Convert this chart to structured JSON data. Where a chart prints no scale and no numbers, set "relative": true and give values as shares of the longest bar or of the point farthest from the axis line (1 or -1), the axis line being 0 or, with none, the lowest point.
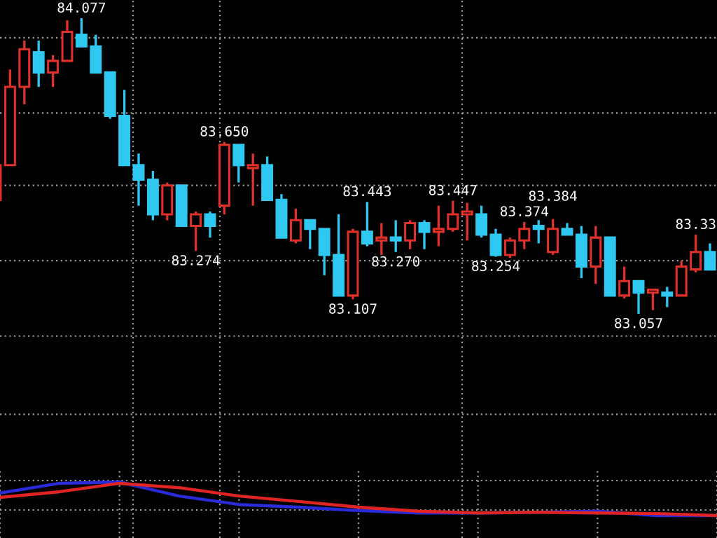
{
  "chart_data": [
    {
      "type": "candlestick",
      "categories": [
        null,
        null,
        null,
        null,
        null,
        null,
        null,
        null,
        null,
        null,
        null,
        null,
        null,
        null,
        null,
        null,
        null,
        null,
        null,
        null,
        null,
        null,
        null,
        null,
        null,
        null,
        null,
        null,
        null,
        null,
        null,
        null,
        null,
        null,
        null,
        null,
        null,
        null,
        null,
        null,
        null,
        null,
        null,
        null,
        null,
        null,
        null,
        null,
        null,
        null,
        null
      ],
      "ohlc": [
        [
          83.45,
          83.57,
          83.45,
          83.57
        ],
        [
          83.57,
          83.9,
          83.57,
          83.84
        ],
        [
          83.84,
          84.0,
          83.78,
          83.97
        ],
        [
          83.96,
          84.0,
          83.84,
          83.89
        ],
        [
          83.89,
          83.95,
          83.84,
          83.93
        ],
        [
          83.93,
          84.07,
          83.93,
          84.03
        ],
        [
          84.02,
          84.077,
          83.98,
          83.98
        ],
        [
          83.98,
          84.02,
          83.89,
          83.89
        ],
        [
          83.89,
          83.89,
          83.73,
          83.74
        ],
        [
          83.74,
          83.83,
          83.57,
          83.57
        ],
        [
          83.57,
          83.61,
          83.43,
          83.52
        ],
        [
          83.52,
          83.55,
          83.38,
          83.4
        ],
        [
          83.4,
          83.51,
          83.38,
          83.5
        ],
        [
          83.5,
          83.5,
          83.36,
          83.36
        ],
        [
          83.36,
          83.41,
          83.274,
          83.4
        ],
        [
          83.4,
          83.41,
          83.32,
          83.36
        ],
        [
          83.43,
          83.65,
          83.4,
          83.64
        ],
        [
          83.64,
          83.64,
          83.51,
          83.57
        ],
        [
          83.56,
          83.61,
          83.43,
          83.57
        ],
        [
          83.57,
          83.6,
          83.45,
          83.45
        ],
        [
          83.45,
          83.47,
          83.32,
          83.32
        ],
        [
          83.31,
          83.42,
          83.3,
          83.38
        ],
        [
          83.38,
          83.38,
          83.28,
          83.35
        ],
        [
          83.35,
          83.35,
          83.19,
          83.26
        ],
        [
          83.26,
          83.4,
          83.12,
          83.12
        ],
        [
          83.12,
          83.35,
          83.107,
          83.34
        ],
        [
          83.34,
          83.443,
          83.29,
          83.3
        ],
        [
          83.31,
          83.37,
          83.26,
          83.32
        ],
        [
          83.32,
          83.38,
          83.27,
          83.31
        ],
        [
          83.31,
          83.38,
          83.28,
          83.37
        ],
        [
          83.37,
          83.38,
          83.28,
          83.34
        ],
        [
          83.34,
          83.43,
          83.29,
          83.35
        ],
        [
          83.35,
          83.447,
          83.34,
          83.4
        ],
        [
          83.4,
          83.44,
          83.31,
          83.41
        ],
        [
          83.4,
          83.43,
          83.32,
          83.33
        ],
        [
          83.33,
          83.35,
          83.254,
          83.26
        ],
        [
          83.26,
          83.32,
          83.25,
          83.31
        ],
        [
          83.31,
          83.374,
          83.28,
          83.35
        ],
        [
          83.36,
          83.38,
          83.3,
          83.35
        ],
        [
          83.27,
          83.384,
          83.26,
          83.35
        ],
        [
          83.35,
          83.37,
          83.33,
          83.33
        ],
        [
          83.33,
          83.36,
          83.18,
          83.22
        ],
        [
          83.22,
          83.36,
          83.16,
          83.32
        ],
        [
          83.32,
          83.32,
          83.12,
          83.12
        ],
        [
          83.12,
          83.22,
          83.11,
          83.17
        ],
        [
          83.17,
          83.17,
          83.057,
          83.13
        ],
        [
          83.13,
          83.14,
          83.07,
          83.14
        ],
        [
          83.13,
          83.15,
          83.08,
          83.12
        ],
        [
          83.12,
          83.24,
          83.12,
          83.22
        ],
        [
          83.21,
          83.33,
          83.2,
          83.27
        ],
        [
          83.27,
          83.3,
          83.21,
          83.21
        ]
      ],
      "ylim": [
        82.52,
        84.14
      ],
      "yticks": [
        {
          "value": 84.01,
          "label": null
        },
        {
          "value": 83.75,
          "label": null
        },
        {
          "value": 83.5,
          "label": null
        },
        {
          "value": 83.24,
          "label": null
        },
        {
          "value": 82.98,
          "label": null
        },
        {
          "value": 82.71,
          "label": null
        }
      ],
      "grid": "y",
      "tick_labels": false,
      "annotations": [
        {
          "text": "84.077",
          "y": 84.077
        },
        {
          "text": "83.274",
          "y": 83.274
        },
        {
          "text": "83.650",
          "y": 83.65
        },
        {
          "text": "83.107",
          "y": 83.107
        },
        {
          "text": "83.443",
          "y": 83.443
        },
        {
          "text": "83.270",
          "y": 83.27
        },
        {
          "text": "83.447",
          "y": 83.447
        },
        {
          "text": "83.254",
          "y": 83.254
        },
        {
          "text": "83.374",
          "y": 83.374
        },
        {
          "text": "83.384",
          "y": 83.384
        },
        {
          "text": "83.057",
          "y": 83.057
        },
        {
          "text": "83.33",
          "y": 83.33
        }
      ]
    },
    {
      "type": "line",
      "relative": true,
      "categories": [
        null,
        null,
        null,
        null,
        null,
        null,
        null,
        null,
        null,
        null,
        null,
        null,
        null
      ],
      "series": [
        {
          "color": "#2a2ad8",
          "values": [
            0.67,
            0.96,
            1,
            0.58,
            0.33,
            0.25,
            0.15,
            0.08,
            0.08,
            0.1,
            0.13,
            0,
            0
          ]
        },
        {
          "color": "#e02424",
          "values": [
            0.54,
            0.71,
            0.96,
            0.83,
            0.58,
            0.42,
            0.25,
            0.13,
            0.08,
            0.1,
            0.08,
            0.06,
            0
          ]
        }
      ],
      "grid": true,
      "tick_labels": false
    }
  ]
}
